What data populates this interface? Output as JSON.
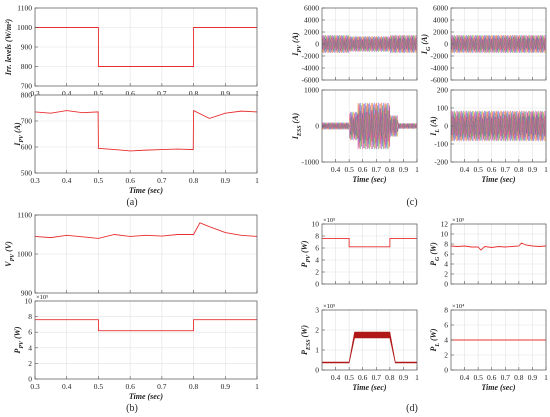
{
  "captions": [
    "(a)",
    "(b)",
    "(c)",
    "(d)"
  ],
  "chart_data": [
    {
      "type": "line",
      "panel": "(a)",
      "title": "",
      "ylabel": "Irr. levels (W/m²)",
      "xlabel": "",
      "xlim": [
        0.3,
        1
      ],
      "ylim": [
        700,
        1100
      ],
      "xticks": [
        0.3,
        0.4,
        0.5,
        0.6,
        0.7,
        0.8,
        0.9,
        1
      ],
      "yticks": [
        700,
        800,
        900,
        1000,
        1100
      ],
      "grid": true,
      "show_xticklabels": true,
      "series": [
        {
          "color": "#e83030",
          "x": [
            0.3,
            0.5,
            0.5,
            0.8,
            0.8,
            1
          ],
          "y": [
            1000,
            1000,
            800,
            800,
            1000,
            1000
          ]
        }
      ]
    },
    {
      "type": "line",
      "panel": "(a)",
      "ylabel": "I_PV (A)",
      "xlabel": "Time (sec)",
      "xlim": [
        0.3,
        1
      ],
      "ylim": [
        500,
        800
      ],
      "xticks": [
        0.3,
        0.4,
        0.5,
        0.6,
        0.7,
        0.8,
        0.9,
        1
      ],
      "yticks": [
        500,
        600,
        700,
        800
      ],
      "grid": true,
      "show_xticklabels": true,
      "series": [
        {
          "color": "#e83030",
          "x": [
            0.3,
            0.35,
            0.4,
            0.45,
            0.499,
            0.5,
            0.55,
            0.6,
            0.65,
            0.7,
            0.75,
            0.799,
            0.8,
            0.85,
            0.9,
            0.95,
            1
          ],
          "y": [
            735,
            730,
            740,
            732,
            735,
            595,
            590,
            585,
            588,
            590,
            592,
            590,
            740,
            710,
            730,
            738,
            735
          ]
        }
      ]
    },
    {
      "type": "line",
      "panel": "(b)",
      "ylabel": "V_PV (V)",
      "xlabel": "",
      "xlim": [
        0.3,
        1
      ],
      "ylim": [
        900,
        1100
      ],
      "xticks": [
        0.3,
        0.4,
        0.5,
        0.6,
        0.7,
        0.8,
        0.9,
        1
      ],
      "yticks": [
        900,
        1000,
        1100
      ],
      "grid": true,
      "show_xticklabels": false,
      "series": [
        {
          "color": "#e83030",
          "x": [
            0.3,
            0.35,
            0.4,
            0.45,
            0.5,
            0.55,
            0.6,
            0.65,
            0.7,
            0.75,
            0.8,
            0.82,
            0.85,
            0.9,
            0.95,
            1
          ],
          "y": [
            1045,
            1042,
            1048,
            1044,
            1040,
            1050,
            1045,
            1048,
            1046,
            1050,
            1050,
            1080,
            1070,
            1055,
            1048,
            1045
          ]
        }
      ]
    },
    {
      "type": "line",
      "panel": "(b)",
      "ylabel": "P_PV (W)",
      "xlabel": "Time (sec)",
      "scale_exponent": "×10⁵",
      "xlim": [
        0.3,
        1
      ],
      "ylim": [
        0,
        10
      ],
      "xticks": [
        0.3,
        0.4,
        0.5,
        0.6,
        0.7,
        0.8,
        0.9,
        1
      ],
      "yticks": [
        0,
        2,
        4,
        6,
        8,
        10
      ],
      "grid": true,
      "show_xticklabels": true,
      "series": [
        {
          "color": "#e83030",
          "x": [
            0.3,
            0.5,
            0.5,
            0.8,
            0.8,
            1
          ],
          "y": [
            7.6,
            7.6,
            6.2,
            6.2,
            7.6,
            7.6
          ]
        }
      ]
    },
    {
      "type": "line",
      "panel": "(c)",
      "ylabel": "I_PV (A)",
      "xlabel": "",
      "xlim": [
        0.3,
        1
      ],
      "ylim": [
        -6000,
        6000
      ],
      "xticks": [
        0.4,
        0.5,
        0.6,
        0.7,
        0.8,
        0.9,
        1
      ],
      "yticks": [
        -6000,
        -4000,
        -2000,
        0,
        2000,
        4000,
        6000
      ],
      "grid": true,
      "show_xticklabels": false,
      "oscillation": {
        "segments": [
          [
            0.3,
            0.5,
            1500
          ],
          [
            0.5,
            0.8,
            1300
          ],
          [
            0.8,
            1,
            1500
          ]
        ]
      }
    },
    {
      "type": "line",
      "panel": "(c)",
      "ylabel": "I_G (A)",
      "xlabel": "",
      "xlim": [
        0.3,
        1
      ],
      "ylim": [
        -6000,
        6000
      ],
      "xticks": [
        0.4,
        0.5,
        0.6,
        0.7,
        0.8,
        0.9,
        1
      ],
      "yticks": [
        -6000,
        -4000,
        -2000,
        0,
        2000,
        4000,
        6000
      ],
      "grid": true,
      "show_xticklabels": false,
      "oscillation": {
        "segments": [
          [
            0.3,
            1,
            1500
          ]
        ]
      }
    },
    {
      "type": "line",
      "panel": "(c)",
      "ylabel": "I_ESS (A)",
      "xlabel": "Time (sec)",
      "xlim": [
        0.3,
        1
      ],
      "ylim": [
        -1000,
        1000
      ],
      "xticks": [
        0.4,
        0.5,
        0.6,
        0.7,
        0.8,
        0.9,
        1
      ],
      "yticks": [
        -1000,
        0,
        1000
      ],
      "grid": true,
      "show_xticklabels": true,
      "oscillation": {
        "segments": [
          [
            0.3,
            0.5,
            100
          ],
          [
            0.5,
            0.56,
            400
          ],
          [
            0.56,
            0.8,
            650
          ],
          [
            0.8,
            0.86,
            300
          ],
          [
            0.86,
            1,
            80
          ]
        ]
      }
    },
    {
      "type": "line",
      "panel": "(c)",
      "ylabel": "I_L (A)",
      "xlabel": "Time (sec)",
      "xlim": [
        0.3,
        1
      ],
      "ylim": [
        -200,
        200
      ],
      "xticks": [
        0.4,
        0.5,
        0.6,
        0.7,
        0.8,
        0.9,
        1
      ],
      "yticks": [
        -200,
        -100,
        0,
        100,
        200
      ],
      "grid": true,
      "show_xticklabels": true,
      "oscillation": {
        "segments": [
          [
            0.3,
            1,
            85
          ]
        ]
      }
    },
    {
      "type": "line",
      "panel": "(d)",
      "ylabel": "P_PV (W)",
      "xlabel": "",
      "scale_exponent": "×10⁵",
      "xlim": [
        0.3,
        1
      ],
      "ylim": [
        0,
        10
      ],
      "xticks": [
        0.4,
        0.5,
        0.6,
        0.7,
        0.8,
        0.9,
        1
      ],
      "yticks": [
        0,
        2,
        4,
        6,
        8,
        10
      ],
      "grid": true,
      "show_xticklabels": false,
      "series": [
        {
          "color": "#e83030",
          "x": [
            0.3,
            0.5,
            0.5,
            0.8,
            0.8,
            1
          ],
          "y": [
            7.6,
            7.6,
            6.2,
            6.2,
            7.6,
            7.6
          ]
        }
      ]
    },
    {
      "type": "line",
      "panel": "(d)",
      "ylabel": "P_G (W)",
      "xlabel": "",
      "scale_exponent": "×10⁵",
      "xlim": [
        0.3,
        1
      ],
      "ylim": [
        0,
        12
      ],
      "xticks": [
        0.4,
        0.5,
        0.6,
        0.7,
        0.8,
        0.9,
        1
      ],
      "yticks": [
        0,
        2,
        4,
        6,
        8,
        10,
        12
      ],
      "grid": true,
      "show_xticklabels": false,
      "series": [
        {
          "color": "#e83030",
          "x": [
            0.3,
            0.35,
            0.4,
            0.45,
            0.5,
            0.52,
            0.55,
            0.6,
            0.65,
            0.7,
            0.75,
            0.8,
            0.82,
            0.85,
            0.9,
            0.95,
            1
          ],
          "y": [
            7.6,
            7.5,
            7.6,
            7.4,
            7.4,
            6.8,
            7.5,
            7.3,
            7.5,
            7.4,
            7.5,
            7.6,
            8.2,
            7.8,
            7.6,
            7.5,
            7.6
          ]
        }
      ]
    },
    {
      "type": "line",
      "panel": "(d)",
      "ylabel": "P_ESS (W)",
      "xlabel": "Time (sec)",
      "scale_exponent": "×10⁵",
      "xlim": [
        0.3,
        1
      ],
      "ylim": [
        0,
        3
      ],
      "xticks": [
        0.4,
        0.5,
        0.6,
        0.7,
        0.8,
        0.9,
        1
      ],
      "yticks": [
        0,
        1,
        2,
        3
      ],
      "grid": true,
      "show_xticklabels": true,
      "band": {
        "color": "#b01818",
        "upper_x": [
          0.3,
          0.5,
          0.54,
          0.8,
          0.84,
          1
        ],
        "upper_y": [
          0.4,
          0.4,
          1.9,
          1.9,
          0.4,
          0.4
        ],
        "lower_x": [
          0.3,
          0.5,
          0.54,
          0.8,
          0.84,
          1
        ],
        "lower_y": [
          0.35,
          0.35,
          1.6,
          1.6,
          0.35,
          0.35
        ]
      }
    },
    {
      "type": "line",
      "panel": "(d)",
      "ylabel": "P_L (W)",
      "xlabel": "Time (sec)",
      "scale_exponent": "×10⁴",
      "xlim": [
        0.3,
        1
      ],
      "ylim": [
        0,
        8
      ],
      "xticks": [
        0.4,
        0.5,
        0.6,
        0.7,
        0.8,
        0.9,
        1
      ],
      "yticks": [
        0,
        2,
        4,
        6,
        8
      ],
      "grid": true,
      "show_xticklabels": true,
      "series": [
        {
          "color": "#e83030",
          "x": [
            0.3,
            1
          ],
          "y": [
            4,
            4
          ]
        }
      ]
    }
  ]
}
